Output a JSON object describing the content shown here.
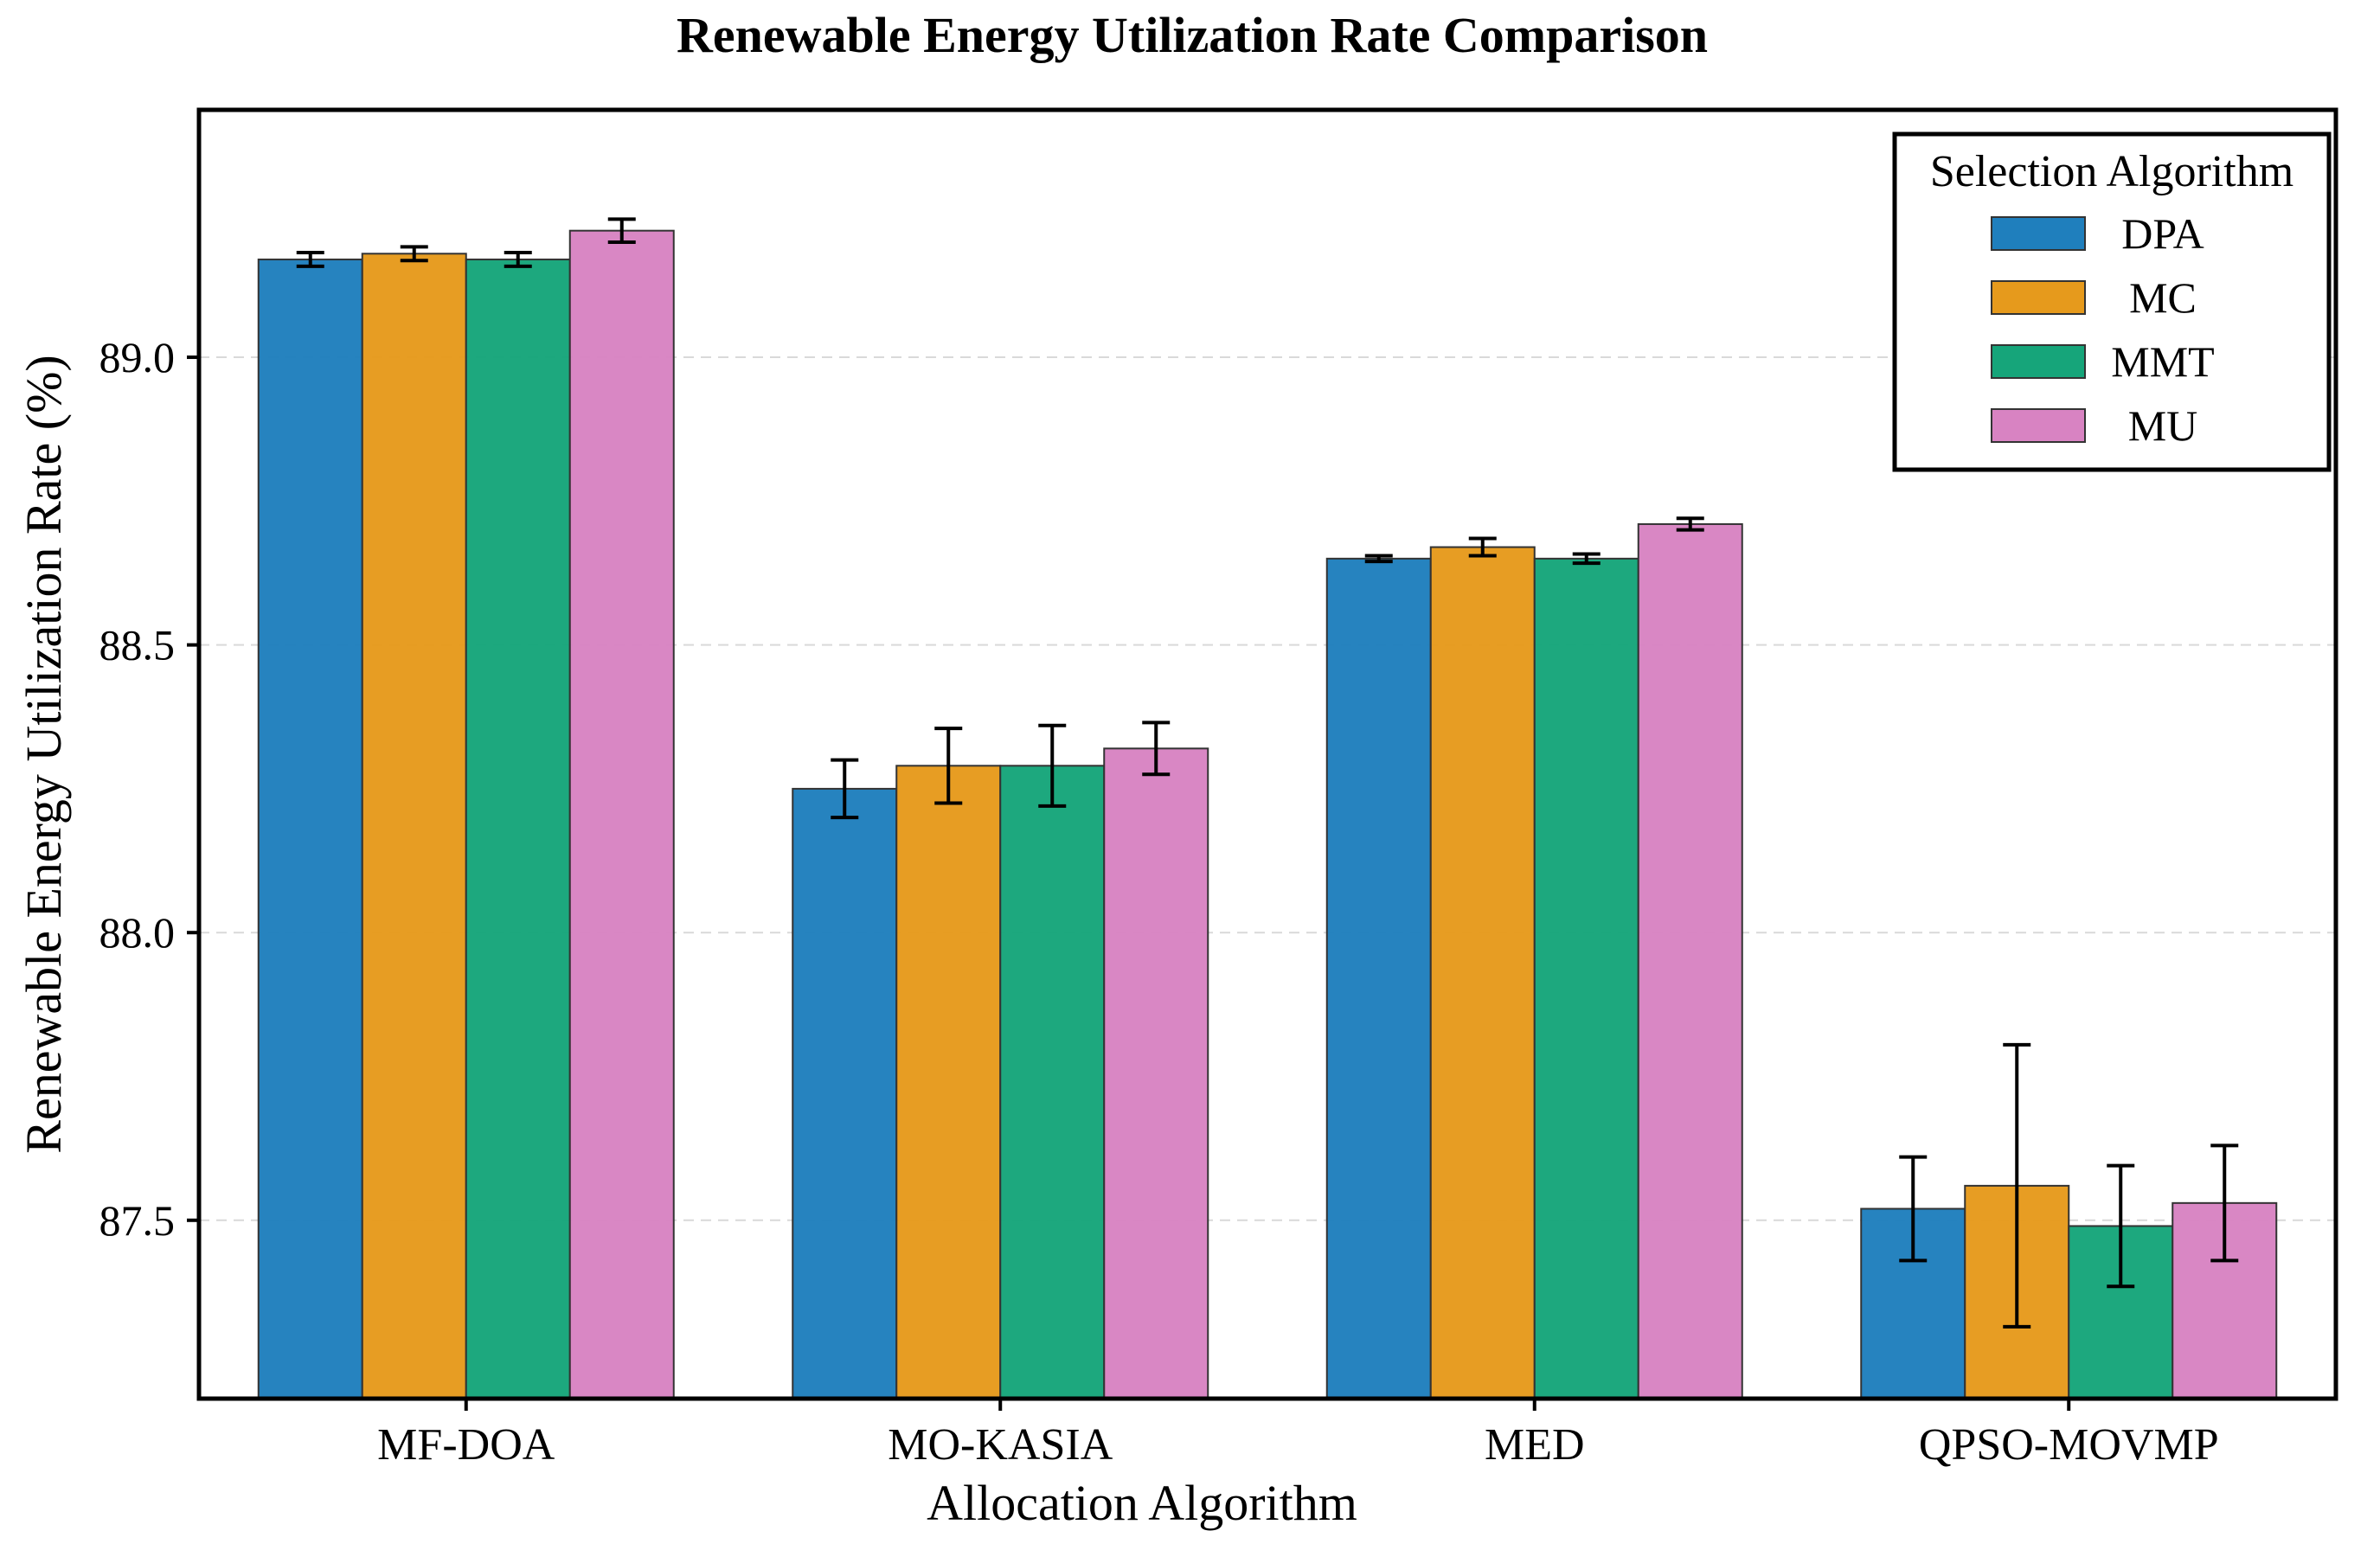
{
  "chart_data": {
    "type": "bar",
    "title": "Renewable Energy Utilization Rate Comparison",
    "xlabel": "Allocation Algorithm",
    "ylabel": "Renewable Energy Utilization Rate (%)",
    "categories": [
      "MF-DOA",
      "MO-KASIA",
      "MED",
      "QPSO-MOVMP"
    ],
    "ylim": [
      87.19,
      89.43
    ],
    "yticks": [
      87.5,
      88.0,
      88.5,
      89.0
    ],
    "ytick_labels": [
      "87.5",
      "88.0",
      "88.5",
      "89.0"
    ],
    "grid": "horizontal dashed",
    "legend": {
      "title": "Selection Algorithm",
      "placement": "top-right"
    },
    "series": [
      {
        "name": "DPA",
        "color": "#1f7fbd",
        "values": [
          89.17,
          88.25,
          88.65,
          87.52
        ],
        "errors": [
          0.012,
          0.05,
          0.005,
          0.09
        ]
      },
      {
        "name": "MC",
        "color": "#e69a1c",
        "values": [
          89.18,
          88.29,
          88.67,
          87.56
        ],
        "errors": [
          0.012,
          0.065,
          0.015,
          0.245
        ]
      },
      {
        "name": "MMT",
        "color": "#16a57a",
        "values": [
          89.17,
          88.29,
          88.65,
          87.49
        ],
        "errors": [
          0.012,
          0.07,
          0.008,
          0.105
        ]
      },
      {
        "name": "MU",
        "color": "#d883c2",
        "values": [
          89.22,
          88.32,
          88.71,
          87.53
        ],
        "errors": [
          0.02,
          0.045,
          0.01,
          0.1
        ]
      }
    ]
  }
}
